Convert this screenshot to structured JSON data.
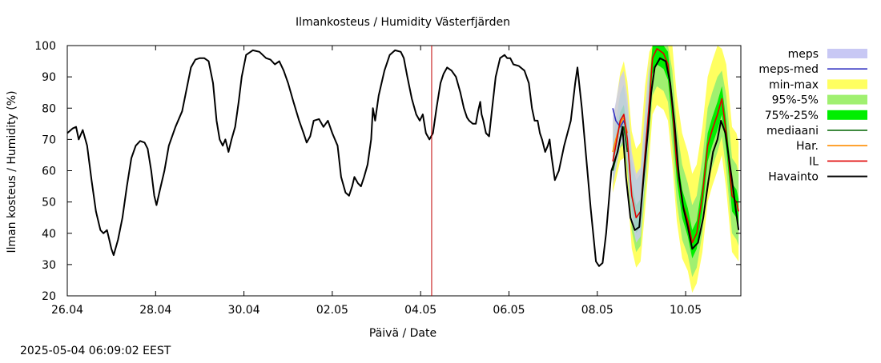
{
  "chart_data": {
    "type": "line",
    "title": "Ilmankosteus / Humidity  Västerfjärden",
    "xlabel": "Päivä / Date",
    "ylabel": "Ilman kosteus / Humidity (%)",
    "ylim": [
      20,
      100
    ],
    "yticks": [
      20,
      30,
      40,
      50,
      60,
      70,
      80,
      90,
      100
    ],
    "xlim": [
      0,
      15.25
    ],
    "xtick_positions": [
      0,
      2,
      4,
      6,
      8,
      10,
      12,
      14
    ],
    "xtick_labels": [
      "26.04",
      "28.04",
      "30.04",
      "02.05",
      "04.05",
      "06.05",
      "08.05",
      "10.05"
    ],
    "now_marker_x": 8.25,
    "grid": false,
    "legend_position": "right",
    "legend": [
      {
        "label": "meps",
        "kind": "band",
        "color": "#c8c8f4"
      },
      {
        "label": "meps-med",
        "kind": "line",
        "color": "#3030c0"
      },
      {
        "label": "min-max",
        "kind": "band",
        "color": "#ffff60"
      },
      {
        "label": "95%-5%",
        "kind": "band",
        "color": "#a0f070"
      },
      {
        "label": "75%-25%",
        "kind": "band",
        "color": "#00ee00"
      },
      {
        "label": "mediaani",
        "kind": "line",
        "color": "#006400"
      },
      {
        "label": "Har.",
        "kind": "line",
        "color": "#ff8c00"
      },
      {
        "label": "IL",
        "kind": "line",
        "color": "#e00000"
      },
      {
        "label": "Havainto",
        "kind": "line",
        "color": "#000000"
      }
    ],
    "series": [
      {
        "name": "Havainto",
        "points": [
          [
            0,
            72
          ],
          [
            0.12,
            73.5
          ],
          [
            0.2,
            74
          ],
          [
            0.26,
            70
          ],
          [
            0.35,
            73
          ],
          [
            0.45,
            68
          ],
          [
            0.55,
            57
          ],
          [
            0.65,
            47
          ],
          [
            0.75,
            41
          ],
          [
            0.82,
            40
          ],
          [
            0.9,
            41
          ],
          [
            0.95,
            38
          ],
          [
            1.0,
            35
          ],
          [
            1.05,
            33
          ],
          [
            1.15,
            38
          ],
          [
            1.25,
            45
          ],
          [
            1.35,
            55
          ],
          [
            1.45,
            64
          ],
          [
            1.55,
            68
          ],
          [
            1.65,
            69.5
          ],
          [
            1.75,
            69
          ],
          [
            1.82,
            67
          ],
          [
            1.9,
            60
          ],
          [
            1.97,
            52
          ],
          [
            2.02,
            49
          ],
          [
            2.1,
            54
          ],
          [
            2.2,
            60
          ],
          [
            2.3,
            68
          ],
          [
            2.45,
            74
          ],
          [
            2.6,
            79
          ],
          [
            2.7,
            86
          ],
          [
            2.8,
            93
          ],
          [
            2.9,
            95.5
          ],
          [
            3.0,
            96
          ],
          [
            3.1,
            96
          ],
          [
            3.2,
            95
          ],
          [
            3.3,
            88
          ],
          [
            3.38,
            76
          ],
          [
            3.45,
            70
          ],
          [
            3.52,
            68
          ],
          [
            3.58,
            70
          ],
          [
            3.65,
            66
          ],
          [
            3.72,
            70
          ],
          [
            3.8,
            74
          ],
          [
            3.88,
            82
          ],
          [
            3.95,
            90
          ],
          [
            4.05,
            97
          ],
          [
            4.2,
            98.5
          ],
          [
            4.35,
            98
          ],
          [
            4.5,
            96
          ],
          [
            4.6,
            95.5
          ],
          [
            4.7,
            94
          ],
          [
            4.8,
            95
          ],
          [
            4.9,
            92
          ],
          [
            5.0,
            88
          ],
          [
            5.12,
            82
          ],
          [
            5.25,
            76
          ],
          [
            5.35,
            72
          ],
          [
            5.42,
            69
          ],
          [
            5.5,
            71
          ],
          [
            5.58,
            76
          ],
          [
            5.7,
            76.5
          ],
          [
            5.8,
            74
          ],
          [
            5.9,
            76
          ],
          [
            6.0,
            72
          ],
          [
            6.06,
            70
          ],
          [
            6.12,
            68
          ],
          [
            6.2,
            58
          ],
          [
            6.3,
            53
          ],
          [
            6.38,
            52
          ],
          [
            6.45,
            55
          ],
          [
            6.5,
            58
          ],
          [
            6.58,
            56
          ],
          [
            6.65,
            55
          ],
          [
            6.72,
            58
          ],
          [
            6.8,
            62
          ],
          [
            6.88,
            70
          ],
          [
            6.92,
            80
          ],
          [
            6.97,
            76
          ],
          [
            7.05,
            84
          ],
          [
            7.18,
            92
          ],
          [
            7.3,
            97
          ],
          [
            7.42,
            98.5
          ],
          [
            7.55,
            98
          ],
          [
            7.62,
            96
          ],
          [
            7.7,
            90
          ],
          [
            7.8,
            83
          ],
          [
            7.9,
            78
          ],
          [
            7.98,
            76
          ],
          [
            8.05,
            78
          ],
          [
            8.12,
            72
          ],
          [
            8.2,
            70
          ],
          [
            8.28,
            72
          ],
          [
            8.36,
            80
          ],
          [
            8.45,
            88
          ],
          [
            8.52,
            91
          ],
          [
            8.6,
            93
          ],
          [
            8.7,
            92
          ],
          [
            8.8,
            90
          ],
          [
            8.9,
            85
          ],
          [
            8.98,
            80
          ],
          [
            9.05,
            77
          ],
          [
            9.1,
            76
          ],
          [
            9.18,
            75
          ],
          [
            9.25,
            75
          ],
          [
            9.3,
            79
          ],
          [
            9.35,
            82
          ],
          [
            9.38,
            78
          ],
          [
            9.42,
            76
          ],
          [
            9.48,
            72
          ],
          [
            9.55,
            71
          ],
          [
            9.62,
            80
          ],
          [
            9.7,
            90
          ],
          [
            9.8,
            96
          ],
          [
            9.9,
            97
          ],
          [
            9.96,
            96
          ],
          [
            10.03,
            96
          ],
          [
            10.1,
            94
          ],
          [
            10.22,
            93.5
          ],
          [
            10.35,
            92
          ],
          [
            10.45,
            88
          ],
          [
            10.52,
            80
          ],
          [
            10.58,
            76
          ],
          [
            10.65,
            76
          ],
          [
            10.7,
            72
          ],
          [
            10.75,
            70
          ],
          [
            10.82,
            66
          ],
          [
            10.88,
            68
          ],
          [
            10.92,
            70
          ],
          [
            10.96,
            65
          ],
          [
            11.04,
            57
          ],
          [
            11.13,
            60
          ],
          [
            11.25,
            68
          ],
          [
            11.4,
            76
          ],
          [
            11.5,
            88
          ],
          [
            11.55,
            93
          ],
          [
            11.65,
            80
          ],
          [
            11.75,
            64
          ],
          [
            11.85,
            48
          ],
          [
            11.92,
            38
          ],
          [
            11.97,
            31
          ],
          [
            12.04,
            29.5
          ],
          [
            12.12,
            30.5
          ],
          [
            12.2,
            40
          ],
          [
            12.32,
            60
          ],
          [
            12.46,
            66
          ],
          [
            12.57,
            74
          ],
          [
            12.65,
            58
          ],
          [
            12.75,
            45
          ],
          [
            12.85,
            41
          ],
          [
            12.95,
            42
          ],
          [
            13.05,
            58
          ],
          [
            13.15,
            73
          ],
          [
            13.22,
            85
          ],
          [
            13.3,
            93
          ],
          [
            13.42,
            96
          ],
          [
            13.55,
            95
          ],
          [
            13.65,
            88
          ],
          [
            13.75,
            75
          ],
          [
            13.85,
            58
          ],
          [
            13.95,
            48
          ],
          [
            14.05,
            42
          ],
          [
            14.15,
            35
          ],
          [
            14.28,
            37
          ],
          [
            14.4,
            45
          ],
          [
            14.52,
            57
          ],
          [
            14.62,
            66
          ],
          [
            14.72,
            70
          ],
          [
            14.8,
            76
          ],
          [
            14.9,
            72
          ],
          [
            15.05,
            57
          ],
          [
            15.15,
            46
          ],
          [
            15.2,
            41
          ]
        ]
      },
      {
        "name": "IL",
        "points": [
          [
            12.35,
            63
          ],
          [
            12.42,
            68
          ],
          [
            12.52,
            76
          ],
          [
            12.6,
            78
          ],
          [
            12.68,
            70
          ],
          [
            12.78,
            52
          ],
          [
            12.88,
            45
          ],
          [
            12.98,
            47
          ],
          [
            13.08,
            65
          ],
          [
            13.18,
            82
          ],
          [
            13.25,
            96
          ],
          [
            13.35,
            99
          ],
          [
            13.5,
            97.5
          ],
          [
            13.6,
            94
          ],
          [
            13.7,
            80
          ],
          [
            13.8,
            62
          ],
          [
            13.92,
            50
          ],
          [
            14.05,
            44
          ],
          [
            14.15,
            37
          ],
          [
            14.25,
            40
          ],
          [
            14.38,
            52
          ],
          [
            14.5,
            68
          ],
          [
            14.6,
            73
          ],
          [
            14.72,
            78
          ],
          [
            14.82,
            83
          ],
          [
            14.92,
            72
          ],
          [
            15.05,
            52
          ],
          [
            15.15,
            50
          ],
          [
            15.2,
            47
          ]
        ]
      },
      {
        "name": "Har.",
        "points": [
          [
            12.35,
            66
          ],
          [
            12.42,
            70
          ],
          [
            12.52,
            75
          ],
          [
            12.6,
            77
          ],
          [
            12.68,
            72
          ]
        ]
      },
      {
        "name": "meps-med",
        "points": [
          [
            12.35,
            80
          ],
          [
            12.42,
            76
          ],
          [
            12.52,
            74
          ],
          [
            12.6,
            76
          ],
          [
            12.68,
            72
          ]
        ]
      },
      {
        "name": "mediaani",
        "points": [
          [
            12.35,
            60
          ],
          [
            12.42,
            64
          ],
          [
            12.52,
            70
          ],
          [
            12.6,
            74
          ],
          [
            12.68,
            66
          ]
        ]
      }
    ]
  },
  "footer": {
    "timestamp": "2025-05-04 06:09:02 EEST"
  }
}
